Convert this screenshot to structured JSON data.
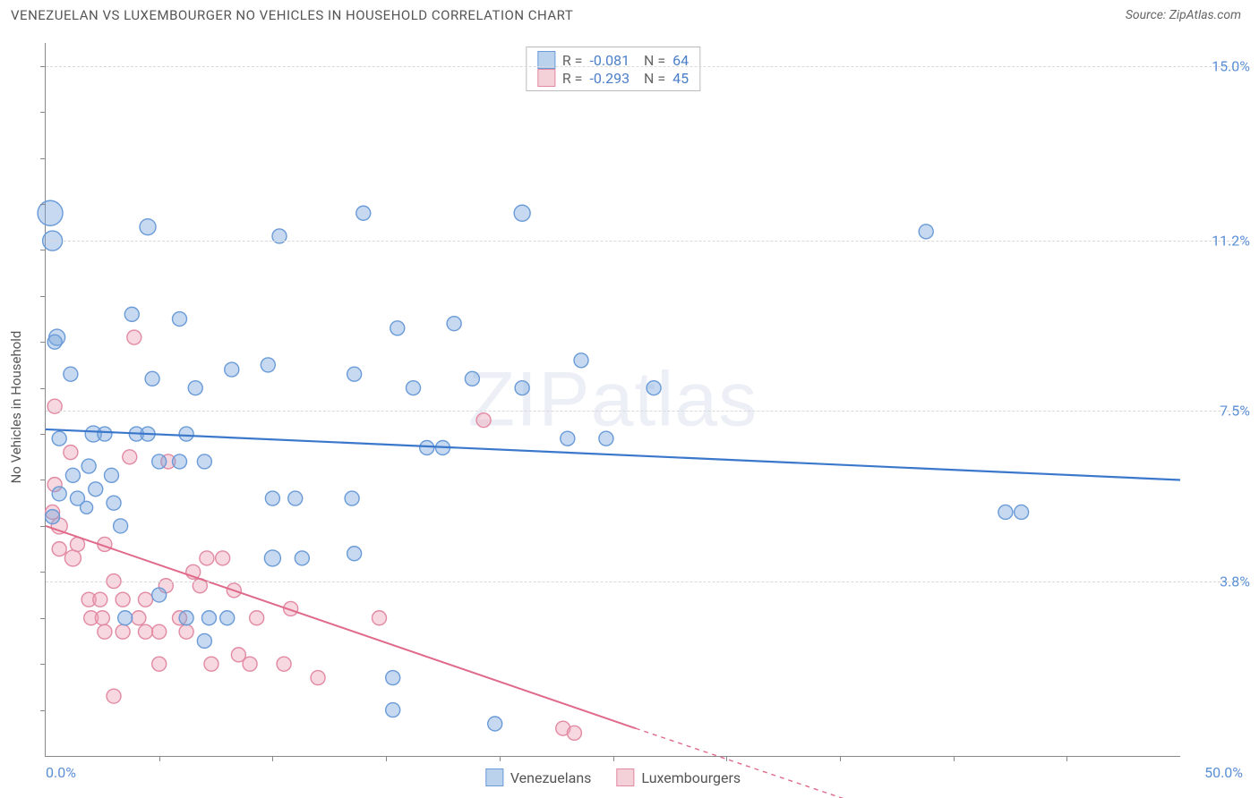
{
  "header": {
    "title": "VENEZUELAN VS LUXEMBOURGER NO VEHICLES IN HOUSEHOLD CORRELATION CHART",
    "source": "Source: ZipAtlas.com"
  },
  "y_axis_title": "No Vehicles in Household",
  "watermark": "ZIPatlas",
  "chart": {
    "type": "scatter",
    "xlim": [
      0,
      50
    ],
    "ylim": [
      0,
      15.5
    ],
    "x_ticks": [
      0,
      50
    ],
    "x_tick_labels": [
      "0.0%",
      "50.0%"
    ],
    "x_minor_ticks": [
      5,
      10,
      15,
      20,
      25,
      30,
      35,
      40,
      45
    ],
    "y_gridlines": [
      3.8,
      7.5,
      11.2,
      15.0
    ],
    "y_tick_labels": [
      "3.8%",
      "7.5%",
      "11.2%",
      "15.0%"
    ],
    "background_color": "#ffffff",
    "grid_color": "#d9d9d9",
    "axis_color": "#888888",
    "series": {
      "venezuelans": {
        "label": "Venezuelans",
        "marker_color": "rgba(120,165,220,0.42)",
        "marker_stroke": "#6a9bd8",
        "line_color": "#3b78cc",
        "line_width": 2.2,
        "R": "-0.081",
        "N": "64",
        "trend": {
          "x1": 0,
          "y1": 7.1,
          "x2": 50,
          "y2": 6.0
        },
        "points": [
          {
            "x": 0.3,
            "y": 11.2,
            "r": 11
          },
          {
            "x": 0.2,
            "y": 11.8,
            "r": 14
          },
          {
            "x": 0.5,
            "y": 9.1,
            "r": 9
          },
          {
            "x": 0.6,
            "y": 6.9,
            "r": 8
          },
          {
            "x": 0.4,
            "y": 9.0,
            "r": 8
          },
          {
            "x": 0.3,
            "y": 5.2,
            "r": 8
          },
          {
            "x": 4.5,
            "y": 11.5,
            "r": 9
          },
          {
            "x": 3.8,
            "y": 9.6,
            "r": 8
          },
          {
            "x": 5.9,
            "y": 9.5,
            "r": 8
          },
          {
            "x": 1.2,
            "y": 6.1,
            "r": 8
          },
          {
            "x": 1.4,
            "y": 5.6,
            "r": 8
          },
          {
            "x": 1.8,
            "y": 5.4,
            "r": 7
          },
          {
            "x": 2.1,
            "y": 7.0,
            "r": 9
          },
          {
            "x": 2.6,
            "y": 7.0,
            "r": 8
          },
          {
            "x": 2.9,
            "y": 6.1,
            "r": 8
          },
          {
            "x": 3.0,
            "y": 5.5,
            "r": 8
          },
          {
            "x": 4.0,
            "y": 7.0,
            "r": 8
          },
          {
            "x": 4.5,
            "y": 7.0,
            "r": 8
          },
          {
            "x": 5.0,
            "y": 6.4,
            "r": 8
          },
          {
            "x": 5.9,
            "y": 6.4,
            "r": 8
          },
          {
            "x": 6.2,
            "y": 7.0,
            "r": 8
          },
          {
            "x": 6.6,
            "y": 8.0,
            "r": 8
          },
          {
            "x": 7.0,
            "y": 6.4,
            "r": 8
          },
          {
            "x": 5.0,
            "y": 3.5,
            "r": 8
          },
          {
            "x": 3.5,
            "y": 3.0,
            "r": 8
          },
          {
            "x": 8.2,
            "y": 8.4,
            "r": 8
          },
          {
            "x": 7.0,
            "y": 2.5,
            "r": 8
          },
          {
            "x": 10.3,
            "y": 11.3,
            "r": 8
          },
          {
            "x": 9.8,
            "y": 8.5,
            "r": 8
          },
          {
            "x": 10.0,
            "y": 5.6,
            "r": 8
          },
          {
            "x": 10.0,
            "y": 4.3,
            "r": 9
          },
          {
            "x": 11.3,
            "y": 4.3,
            "r": 8
          },
          {
            "x": 11.0,
            "y": 5.6,
            "r": 8
          },
          {
            "x": 14.0,
            "y": 11.8,
            "r": 8
          },
          {
            "x": 13.6,
            "y": 8.3,
            "r": 8
          },
          {
            "x": 13.5,
            "y": 5.6,
            "r": 8
          },
          {
            "x": 13.6,
            "y": 4.4,
            "r": 8
          },
          {
            "x": 15.5,
            "y": 9.3,
            "r": 8
          },
          {
            "x": 15.3,
            "y": 1.7,
            "r": 8
          },
          {
            "x": 15.3,
            "y": 1.0,
            "r": 8
          },
          {
            "x": 16.2,
            "y": 8.0,
            "r": 8
          },
          {
            "x": 16.8,
            "y": 6.7,
            "r": 8
          },
          {
            "x": 17.5,
            "y": 6.7,
            "r": 8
          },
          {
            "x": 18.8,
            "y": 8.2,
            "r": 8
          },
          {
            "x": 18.0,
            "y": 9.4,
            "r": 8
          },
          {
            "x": 19.8,
            "y": 0.7,
            "r": 8
          },
          {
            "x": 21.0,
            "y": 11.8,
            "r": 9
          },
          {
            "x": 21.0,
            "y": 8.0,
            "r": 8
          },
          {
            "x": 23.0,
            "y": 6.9,
            "r": 8
          },
          {
            "x": 23.6,
            "y": 8.6,
            "r": 8
          },
          {
            "x": 24.7,
            "y": 6.9,
            "r": 8
          },
          {
            "x": 26.8,
            "y": 8.0,
            "r": 8
          },
          {
            "x": 38.8,
            "y": 11.4,
            "r": 8
          },
          {
            "x": 42.3,
            "y": 5.3,
            "r": 8
          },
          {
            "x": 43.0,
            "y": 5.3,
            "r": 8
          },
          {
            "x": 1.1,
            "y": 8.3,
            "r": 8
          },
          {
            "x": 1.9,
            "y": 6.3,
            "r": 8
          },
          {
            "x": 2.2,
            "y": 5.8,
            "r": 8
          },
          {
            "x": 3.3,
            "y": 5.0,
            "r": 8
          },
          {
            "x": 6.2,
            "y": 3.0,
            "r": 8
          },
          {
            "x": 7.2,
            "y": 3.0,
            "r": 8
          },
          {
            "x": 8.0,
            "y": 3.0,
            "r": 8
          },
          {
            "x": 4.7,
            "y": 8.2,
            "r": 8
          },
          {
            "x": 0.6,
            "y": 5.7,
            "r": 8
          }
        ]
      },
      "luxembourgers": {
        "label": "Luxembourgers",
        "marker_color": "rgba(235,160,180,0.42)",
        "marker_stroke": "#e28aa2",
        "line_color": "#e06a8a",
        "line_width": 2,
        "R": "-0.293",
        "N": "45",
        "trend_solid": {
          "x1": 0,
          "y1": 5.0,
          "x2": 26,
          "y2": 0.6
        },
        "trend_dashed": {
          "x1": 26,
          "y1": 0.6,
          "x2": 38,
          "y2": -1.4
        },
        "points": [
          {
            "x": 0.4,
            "y": 7.6,
            "r": 8
          },
          {
            "x": 0.4,
            "y": 5.9,
            "r": 8
          },
          {
            "x": 0.3,
            "y": 5.3,
            "r": 8
          },
          {
            "x": 0.6,
            "y": 5.0,
            "r": 9
          },
          {
            "x": 0.6,
            "y": 4.5,
            "r": 8
          },
          {
            "x": 1.1,
            "y": 6.6,
            "r": 8
          },
          {
            "x": 1.2,
            "y": 4.3,
            "r": 9
          },
          {
            "x": 1.4,
            "y": 4.6,
            "r": 8
          },
          {
            "x": 1.9,
            "y": 3.4,
            "r": 8
          },
          {
            "x": 2.0,
            "y": 3.0,
            "r": 8
          },
          {
            "x": 2.4,
            "y": 3.4,
            "r": 8
          },
          {
            "x": 2.5,
            "y": 3.0,
            "r": 8
          },
          {
            "x": 2.6,
            "y": 2.7,
            "r": 8
          },
          {
            "x": 2.6,
            "y": 4.6,
            "r": 8
          },
          {
            "x": 3.0,
            "y": 3.8,
            "r": 8
          },
          {
            "x": 3.0,
            "y": 1.3,
            "r": 8
          },
          {
            "x": 3.4,
            "y": 3.4,
            "r": 8
          },
          {
            "x": 3.4,
            "y": 2.7,
            "r": 8
          },
          {
            "x": 3.7,
            "y": 6.5,
            "r": 8
          },
          {
            "x": 3.9,
            "y": 9.1,
            "r": 8
          },
          {
            "x": 4.1,
            "y": 3.0,
            "r": 8
          },
          {
            "x": 4.4,
            "y": 2.7,
            "r": 8
          },
          {
            "x": 4.4,
            "y": 3.4,
            "r": 8
          },
          {
            "x": 5.0,
            "y": 2.7,
            "r": 8
          },
          {
            "x": 5.0,
            "y": 2.0,
            "r": 8
          },
          {
            "x": 5.3,
            "y": 3.7,
            "r": 8
          },
          {
            "x": 5.4,
            "y": 6.4,
            "r": 8
          },
          {
            "x": 5.9,
            "y": 3.0,
            "r": 8
          },
          {
            "x": 6.2,
            "y": 2.7,
            "r": 8
          },
          {
            "x": 6.5,
            "y": 4.0,
            "r": 8
          },
          {
            "x": 6.8,
            "y": 3.7,
            "r": 8
          },
          {
            "x": 7.1,
            "y": 4.3,
            "r": 8
          },
          {
            "x": 7.3,
            "y": 2.0,
            "r": 8
          },
          {
            "x": 7.8,
            "y": 4.3,
            "r": 8
          },
          {
            "x": 8.3,
            "y": 3.6,
            "r": 8
          },
          {
            "x": 8.5,
            "y": 2.2,
            "r": 8
          },
          {
            "x": 9.0,
            "y": 2.0,
            "r": 8
          },
          {
            "x": 9.3,
            "y": 3.0,
            "r": 8
          },
          {
            "x": 10.5,
            "y": 2.0,
            "r": 8
          },
          {
            "x": 10.8,
            "y": 3.2,
            "r": 8
          },
          {
            "x": 12.0,
            "y": 1.7,
            "r": 8
          },
          {
            "x": 14.7,
            "y": 3.0,
            "r": 8
          },
          {
            "x": 19.3,
            "y": 7.3,
            "r": 8
          },
          {
            "x": 22.8,
            "y": 0.6,
            "r": 8
          },
          {
            "x": 23.3,
            "y": 0.5,
            "r": 8
          }
        ]
      }
    }
  },
  "colors": {
    "stat_value": "#4b7fc9",
    "stat_label": "#666666",
    "tick_label": "#5b8fd6"
  }
}
